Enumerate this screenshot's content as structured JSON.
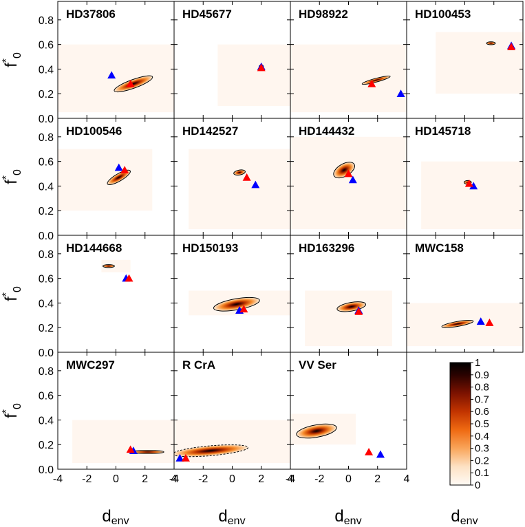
{
  "colors": {
    "red_marker": "#ff0000",
    "blue_marker": "#0000ff",
    "density_low": "#fff8f2",
    "density_high": "#000000",
    "background_region": "#fff6ef"
  },
  "axis_text": {
    "x_main": "d",
    "x_sub": "env",
    "y_main": "f",
    "y_sup": "*",
    "y_sub": "0"
  },
  "chart_data": {
    "type": "heatmap",
    "layout": "4x4 grid of panels, shared axes",
    "xlim": [
      -4,
      4
    ],
    "ylim": [
      0,
      0.95
    ],
    "xticks": [
      "-4",
      "-2",
      "0",
      "2",
      "4"
    ],
    "yticks": [
      "0.0",
      "0.2",
      "0.4",
      "0.6",
      "0.8"
    ],
    "xlabel": "d_env",
    "ylabel": "f*_0",
    "colorbar": {
      "range": [
        0,
        1
      ],
      "ticks": [
        "0",
        "0.1",
        "0.2",
        "0.3",
        "0.4",
        "0.5",
        "0.6",
        "0.7",
        "0.8",
        "0.9",
        "1"
      ]
    },
    "panels": [
      {
        "name": "HD37806",
        "region": [
          -4,
          4,
          0.05,
          0.6
        ],
        "blob": {
          "cx": 1.2,
          "cy": 0.28,
          "rx": 1.4,
          "ry": 0.035,
          "angle": -20
        },
        "red": [
          1.0,
          0.28
        ],
        "blue": [
          -0.3,
          0.35
        ]
      },
      {
        "name": "HD45677",
        "region": [
          -1,
          4,
          0.1,
          0.6
        ],
        "blob": {
          "cx": 2.0,
          "cy": 0.42,
          "rx": 0.15,
          "ry": 0.015,
          "angle": 0
        },
        "red": [
          2.0,
          0.41
        ],
        "blue": [
          2.0,
          0.42
        ]
      },
      {
        "name": "HD98922",
        "region": [
          -4,
          4,
          0.05,
          0.6
        ],
        "blob": {
          "cx": 1.9,
          "cy": 0.31,
          "rx": 1.0,
          "ry": 0.015,
          "angle": -15
        },
        "red": [
          1.6,
          0.28
        ],
        "blue": [
          3.6,
          0.2
        ]
      },
      {
        "name": "HD100453",
        "region": [
          -2,
          4,
          0.2,
          0.7
        ],
        "blob": {
          "cx": 1.8,
          "cy": 0.61,
          "rx": 0.3,
          "ry": 0.012,
          "angle": 0
        },
        "red": [
          3.2,
          0.58
        ],
        "blue": [
          3.2,
          0.59
        ]
      },
      {
        "name": "HD100546",
        "region": [
          -4,
          2.5,
          0.2,
          0.7
        ],
        "blob": {
          "cx": 0.2,
          "cy": 0.47,
          "rx": 0.9,
          "ry": 0.03,
          "angle": -30
        },
        "red": [
          0.6,
          0.53
        ],
        "blue": [
          0.2,
          0.55
        ]
      },
      {
        "name": "HD142527",
        "region": [
          -3,
          4,
          0.05,
          0.7
        ],
        "blob": {
          "cx": 0.5,
          "cy": 0.51,
          "rx": 0.4,
          "ry": 0.02,
          "angle": -10
        },
        "red": [
          1.0,
          0.47
        ],
        "blue": [
          1.6,
          0.41
        ]
      },
      {
        "name": "HD144432",
        "region": [
          -4,
          4,
          0.05,
          0.8
        ],
        "blob": {
          "cx": -0.3,
          "cy": 0.53,
          "rx": 0.8,
          "ry": 0.05,
          "angle": -30
        },
        "red": [
          0.0,
          0.5
        ],
        "blue": [
          0.3,
          0.45
        ]
      },
      {
        "name": "HD145718",
        "region": [
          -3,
          4,
          0.05,
          0.6
        ],
        "blob": {
          "cx": 0.2,
          "cy": 0.43,
          "rx": 0.25,
          "ry": 0.015,
          "angle": 0
        },
        "red": [
          0.3,
          0.42
        ],
        "blue": [
          0.6,
          0.4
        ]
      },
      {
        "name": "HD144668",
        "region": [
          -1,
          1,
          0.65,
          0.75
        ],
        "blob": {
          "cx": -0.5,
          "cy": 0.7,
          "rx": 0.4,
          "ry": 0.012,
          "angle": 0
        },
        "red": [
          0.9,
          0.6
        ],
        "blue": [
          0.7,
          0.6
        ]
      },
      {
        "name": "HD150193",
        "region": [
          -3,
          4,
          0.3,
          0.5
        ],
        "blob": {
          "cx": 0.3,
          "cy": 0.39,
          "rx": 1.6,
          "ry": 0.045,
          "angle": -10
        },
        "red": [
          0.8,
          0.35
        ],
        "blue": [
          0.5,
          0.34
        ]
      },
      {
        "name": "HD163296",
        "region": [
          -3,
          3,
          0.05,
          0.5
        ],
        "blob": {
          "cx": 0.2,
          "cy": 0.37,
          "rx": 1.0,
          "ry": 0.035,
          "angle": -10
        },
        "red": [
          0.7,
          0.33
        ],
        "blue": [
          0.7,
          0.34
        ]
      },
      {
        "name": "MWC158",
        "region": [
          -4,
          4,
          0.05,
          0.4
        ],
        "blob": {
          "cx": -0.5,
          "cy": 0.23,
          "rx": 1.1,
          "ry": 0.02,
          "angle": -10
        },
        "red": [
          1.7,
          0.24
        ],
        "blue": [
          1.1,
          0.25
        ]
      },
      {
        "name": "MWC297",
        "region": [
          -3,
          4,
          0.05,
          0.4
        ],
        "blob": {
          "cx": 2.2,
          "cy": 0.14,
          "rx": 1.1,
          "ry": 0.012,
          "angle": 0
        },
        "red": [
          1.0,
          0.16
        ],
        "blue": [
          1.2,
          0.15
        ]
      },
      {
        "name": "R CrA",
        "region": [
          -4,
          4,
          0.05,
          0.4
        ],
        "blob": {
          "cx": -1.5,
          "cy": 0.15,
          "rx": 2.6,
          "ry": 0.04,
          "angle": -5
        },
        "red": [
          -3.2,
          0.09
        ],
        "blue": [
          -3.6,
          0.09
        ]
      },
      {
        "name": "VV Ser",
        "region": [
          -4,
          0.5,
          0.2,
          0.45
        ],
        "blob": {
          "cx": -2.2,
          "cy": 0.31,
          "rx": 1.4,
          "ry": 0.05,
          "angle": -10
        },
        "red": [
          1.4,
          0.14
        ],
        "blue": [
          2.2,
          0.12
        ]
      }
    ]
  }
}
